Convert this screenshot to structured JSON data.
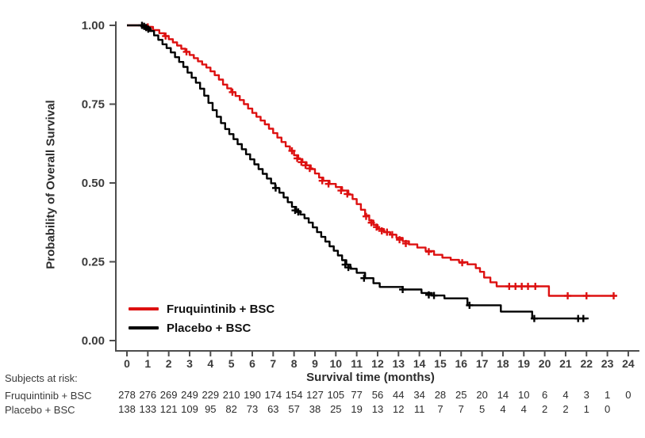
{
  "chart_data": {
    "type": "line",
    "subtype": "kaplan-meier-step",
    "title": "",
    "xlabel": "Survival time (months)",
    "ylabel": "Probability of Overall Survival",
    "xlim": [
      0,
      24
    ],
    "ylim": [
      0,
      1
    ],
    "x_ticks": [
      0,
      1,
      2,
      3,
      4,
      5,
      6,
      7,
      8,
      9,
      10,
      11,
      12,
      13,
      14,
      15,
      16,
      17,
      18,
      19,
      20,
      21,
      22,
      23,
      24
    ],
    "y_ticks": [
      {
        "value": 1.0,
        "label": "1.00"
      },
      {
        "value": 0.75,
        "label": "0.75"
      },
      {
        "value": 0.5,
        "label": "0.50"
      },
      {
        "value": 0.25,
        "label": "0.25"
      },
      {
        "value": 0.0,
        "label": "0.00"
      }
    ],
    "grid": false,
    "legend_position": "inside-bottom-left",
    "axis_color": "#4d4d4d",
    "tick_label_color": "#3c3c3c",
    "series": [
      {
        "name": "Fruquintinib + BSC",
        "color": "#dd1111",
        "end_time": 23.4,
        "steps": [
          [
            0,
            1.0
          ],
          [
            0.95,
            0.995
          ],
          [
            1.25,
            0.985
          ],
          [
            1.55,
            0.975
          ],
          [
            1.8,
            0.966
          ],
          [
            2.0,
            0.956
          ],
          [
            2.2,
            0.946
          ],
          [
            2.4,
            0.936
          ],
          [
            2.6,
            0.926
          ],
          [
            2.8,
            0.916
          ],
          [
            3.0,
            0.906
          ],
          [
            3.2,
            0.896
          ],
          [
            3.4,
            0.886
          ],
          [
            3.6,
            0.876
          ],
          [
            3.8,
            0.866
          ],
          [
            4.0,
            0.854
          ],
          [
            4.2,
            0.842
          ],
          [
            4.4,
            0.828
          ],
          [
            4.6,
            0.812
          ],
          [
            4.8,
            0.8
          ],
          [
            5.0,
            0.788
          ],
          [
            5.2,
            0.776
          ],
          [
            5.4,
            0.763
          ],
          [
            5.6,
            0.75
          ],
          [
            5.8,
            0.736
          ],
          [
            6.0,
            0.722
          ],
          [
            6.2,
            0.71
          ],
          [
            6.4,
            0.698
          ],
          [
            6.6,
            0.686
          ],
          [
            6.8,
            0.672
          ],
          [
            7.0,
            0.658
          ],
          [
            7.2,
            0.644
          ],
          [
            7.4,
            0.63
          ],
          [
            7.6,
            0.616
          ],
          [
            7.8,
            0.602
          ],
          [
            8.0,
            0.588
          ],
          [
            8.2,
            0.576
          ],
          [
            8.4,
            0.566
          ],
          [
            8.6,
            0.556
          ],
          [
            8.8,
            0.544
          ],
          [
            9.0,
            0.53
          ],
          [
            9.2,
            0.517
          ],
          [
            9.4,
            0.507
          ],
          [
            9.7,
            0.497
          ],
          [
            10.0,
            0.487
          ],
          [
            10.3,
            0.476
          ],
          [
            10.6,
            0.463
          ],
          [
            10.8,
            0.449
          ],
          [
            11.0,
            0.433
          ],
          [
            11.2,
            0.415
          ],
          [
            11.4,
            0.397
          ],
          [
            11.6,
            0.381
          ],
          [
            11.8,
            0.367
          ],
          [
            12.0,
            0.354
          ],
          [
            12.3,
            0.344
          ],
          [
            12.6,
            0.336
          ],
          [
            12.9,
            0.326
          ],
          [
            13.2,
            0.315
          ],
          [
            13.5,
            0.305
          ],
          [
            13.9,
            0.295
          ],
          [
            14.3,
            0.284
          ],
          [
            14.7,
            0.272
          ],
          [
            15.1,
            0.263
          ],
          [
            15.5,
            0.256
          ],
          [
            15.9,
            0.249
          ],
          [
            16.3,
            0.242
          ],
          [
            16.7,
            0.23
          ],
          [
            16.9,
            0.218
          ],
          [
            17.1,
            0.2
          ],
          [
            17.4,
            0.185
          ],
          [
            17.7,
            0.172
          ],
          [
            20.2,
            0.142
          ]
        ],
        "censors": [
          [
            1.0,
            0.995
          ],
          [
            1.85,
            0.966
          ],
          [
            2.85,
            0.916
          ],
          [
            5.05,
            0.788
          ],
          [
            7.9,
            0.602
          ],
          [
            8.15,
            0.578
          ],
          [
            8.35,
            0.566
          ],
          [
            8.55,
            0.556
          ],
          [
            8.75,
            0.546
          ],
          [
            9.35,
            0.507
          ],
          [
            9.65,
            0.497
          ],
          [
            10.25,
            0.476
          ],
          [
            10.55,
            0.465
          ],
          [
            11.45,
            0.394
          ],
          [
            11.7,
            0.374
          ],
          [
            11.95,
            0.36
          ],
          [
            12.2,
            0.348
          ],
          [
            12.45,
            0.344
          ],
          [
            12.7,
            0.336
          ],
          [
            13.05,
            0.32
          ],
          [
            13.35,
            0.308
          ],
          [
            14.45,
            0.282
          ],
          [
            16.05,
            0.247
          ],
          [
            18.3,
            0.172
          ],
          [
            18.6,
            0.172
          ],
          [
            18.9,
            0.172
          ],
          [
            19.2,
            0.172
          ],
          [
            19.55,
            0.172
          ],
          [
            21.1,
            0.142
          ],
          [
            22.0,
            0.142
          ],
          [
            23.3,
            0.142
          ]
        ]
      },
      {
        "name": "Placebo + BSC",
        "color": "#000000",
        "end_time": 22.1,
        "steps": [
          [
            0,
            1.0
          ],
          [
            0.9,
            0.993
          ],
          [
            1.1,
            0.982
          ],
          [
            1.3,
            0.968
          ],
          [
            1.5,
            0.954
          ],
          [
            1.7,
            0.94
          ],
          [
            1.9,
            0.928
          ],
          [
            2.1,
            0.914
          ],
          [
            2.3,
            0.899
          ],
          [
            2.5,
            0.884
          ],
          [
            2.7,
            0.868
          ],
          [
            2.9,
            0.85
          ],
          [
            3.1,
            0.834
          ],
          [
            3.3,
            0.818
          ],
          [
            3.5,
            0.799
          ],
          [
            3.7,
            0.777
          ],
          [
            3.9,
            0.754
          ],
          [
            4.1,
            0.731
          ],
          [
            4.3,
            0.71
          ],
          [
            4.5,
            0.69
          ],
          [
            4.7,
            0.671
          ],
          [
            4.9,
            0.655
          ],
          [
            5.1,
            0.639
          ],
          [
            5.3,
            0.623
          ],
          [
            5.5,
            0.607
          ],
          [
            5.7,
            0.591
          ],
          [
            5.9,
            0.575
          ],
          [
            6.1,
            0.559
          ],
          [
            6.3,
            0.544
          ],
          [
            6.5,
            0.529
          ],
          [
            6.7,
            0.514
          ],
          [
            6.9,
            0.499
          ],
          [
            7.1,
            0.484
          ],
          [
            7.3,
            0.469
          ],
          [
            7.5,
            0.454
          ],
          [
            7.7,
            0.439
          ],
          [
            7.9,
            0.424
          ],
          [
            8.1,
            0.411
          ],
          [
            8.3,
            0.4
          ],
          [
            8.5,
            0.388
          ],
          [
            8.7,
            0.374
          ],
          [
            8.9,
            0.359
          ],
          [
            9.1,
            0.344
          ],
          [
            9.3,
            0.329
          ],
          [
            9.5,
            0.314
          ],
          [
            9.7,
            0.299
          ],
          [
            9.9,
            0.285
          ],
          [
            10.1,
            0.27
          ],
          [
            10.3,
            0.255
          ],
          [
            10.5,
            0.241
          ],
          [
            10.7,
            0.228
          ],
          [
            11.0,
            0.215
          ],
          [
            11.4,
            0.198
          ],
          [
            11.8,
            0.182
          ],
          [
            12.1,
            0.17
          ],
          [
            13.2,
            0.162
          ],
          [
            14.1,
            0.151
          ],
          [
            14.6,
            0.143
          ],
          [
            15.2,
            0.134
          ],
          [
            16.3,
            0.112
          ],
          [
            17.9,
            0.092
          ],
          [
            19.4,
            0.07
          ]
        ],
        "censors": [
          [
            0.72,
            1.0
          ],
          [
            0.82,
            0.997
          ],
          [
            0.92,
            0.993
          ],
          [
            1.02,
            0.988
          ],
          [
            7.12,
            0.484
          ],
          [
            8.05,
            0.413
          ],
          [
            8.2,
            0.408
          ],
          [
            10.45,
            0.241
          ],
          [
            10.6,
            0.232
          ],
          [
            11.35,
            0.198
          ],
          [
            13.2,
            0.162
          ],
          [
            14.45,
            0.145
          ],
          [
            14.7,
            0.143
          ],
          [
            16.4,
            0.112
          ],
          [
            19.5,
            0.07
          ],
          [
            21.6,
            0.07
          ],
          [
            21.85,
            0.07
          ]
        ]
      }
    ],
    "at_risk": {
      "heading": "Subjects at risk:",
      "rows": [
        {
          "label": "Fruquintinib + BSC",
          "counts": [
            278,
            276,
            269,
            249,
            229,
            210,
            190,
            174,
            154,
            127,
            105,
            77,
            56,
            44,
            34,
            28,
            25,
            20,
            14,
            10,
            6,
            4,
            3,
            1,
            0
          ]
        },
        {
          "label": "Placebo + BSC",
          "counts": [
            138,
            133,
            121,
            109,
            95,
            82,
            73,
            63,
            57,
            38,
            25,
            19,
            13,
            12,
            11,
            7,
            7,
            5,
            4,
            4,
            2,
            2,
            1,
            0
          ]
        }
      ]
    }
  }
}
